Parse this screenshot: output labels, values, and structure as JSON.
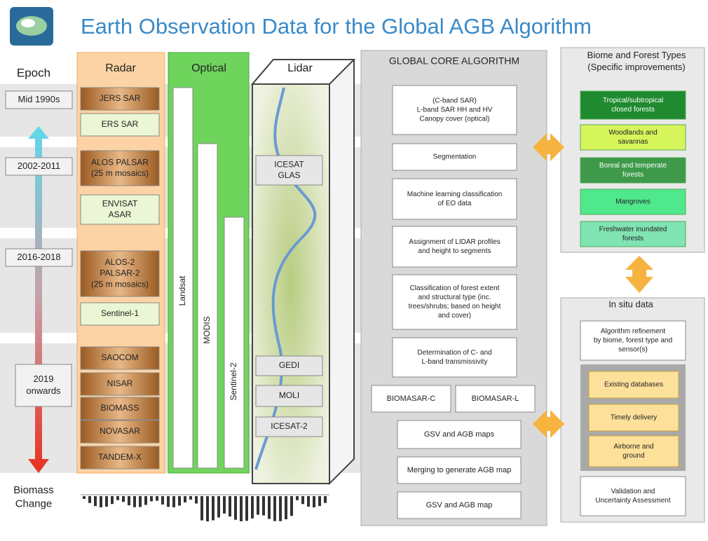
{
  "header": {
    "title": "Earth Observation Data for the Global AGB Algorithm"
  },
  "epoch": {
    "label": "Epoch",
    "periods": [
      "Mid 1990s",
      "2002-2011",
      "2016-2018",
      [
        "2019",
        "onwards"
      ]
    ],
    "biomass_change": [
      "Biomass",
      "Change"
    ]
  },
  "radar": {
    "label": "Radar",
    "sensors": [
      "JERS SAR",
      "ERS SAR",
      [
        "ALOS PALSAR",
        "(25 m mosaics)"
      ],
      [
        "ENVISAT",
        "ASAR"
      ],
      [
        "ALOS-2",
        "PALSAR-2",
        "(25 m mosaics)"
      ],
      "Sentinel-1",
      "SAOCOM",
      "NISAR",
      "BIOMASS",
      "NOVASAR",
      "TANDEM-X"
    ]
  },
  "optical": {
    "label": "Optical",
    "sensors": [
      "Landsat",
      "MODIS",
      "Sentinel-2"
    ]
  },
  "lidar": {
    "label": "Lidar",
    "sensors": [
      [
        "ICESAT",
        "GLAS"
      ],
      "GEDI",
      "MOLI",
      "ICESAT-2"
    ]
  },
  "core": {
    "title": "GLOBAL CORE ALGORITHM",
    "steps": [
      [
        "(C-band SAR)",
        "L-band SAR HH and HV",
        "Canopy cover (optical)"
      ],
      "Segmentation",
      [
        "Machine learning classification",
        "of EO data"
      ],
      [
        "Assignment of LIDAR profiles",
        "and height to segments"
      ],
      [
        "Classification of forest extent",
        "and structural type (inc.",
        "trees/shrubs; based on height",
        "and cover)"
      ],
      [
        "Determination of C- and",
        "L-band transmissivity"
      ]
    ],
    "biomasar": [
      "BIOMASAR-C",
      "BIOMASAR-L"
    ],
    "outputs": [
      "GSV and AGB maps",
      "Merging to generate AGB map",
      "GSV and AGB map"
    ]
  },
  "biome": {
    "title": [
      "Biome and Forest Types",
      "(Specific improvements)"
    ],
    "types": [
      [
        "Tropical/subtropical",
        "closed forests"
      ],
      [
        "Woodlands and",
        "savannas"
      ],
      [
        "Boreal and temperate",
        "forests"
      ],
      "Mangroves",
      [
        "Freshwater inundated",
        "forests"
      ]
    ]
  },
  "in_situ": {
    "title": "In situ data",
    "refinement": [
      "Algorithm refinement",
      "by biome, forest type and",
      "sensor(s)"
    ],
    "sources": [
      "Existing databases",
      "Timely delivery",
      [
        "Airborne and",
        "ground"
      ]
    ],
    "validation": [
      "Validation and",
      "Uncertainty Assessment"
    ]
  }
}
